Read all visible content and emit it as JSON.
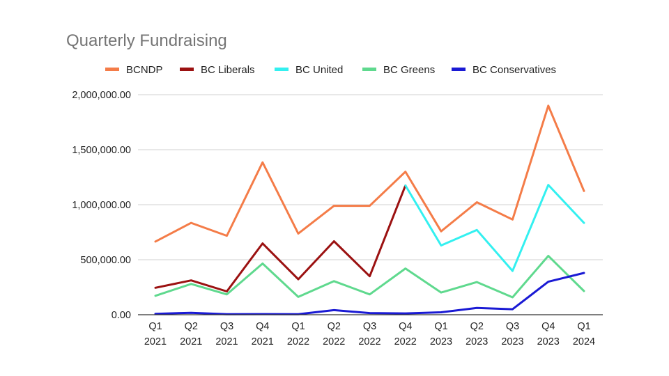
{
  "chart_data": {
    "type": "line",
    "title": "Quarterly Fundraising",
    "xlabel": "",
    "ylabel": "",
    "categories": [
      [
        "Q1",
        "2021"
      ],
      [
        "Q2",
        "2021"
      ],
      [
        "Q3",
        "2021"
      ],
      [
        "Q4",
        "2021"
      ],
      [
        "Q1",
        "2022"
      ],
      [
        "Q2",
        "2022"
      ],
      [
        "Q3",
        "2022"
      ],
      [
        "Q4",
        "2022"
      ],
      [
        "Q1",
        "2023"
      ],
      [
        "Q2",
        "2023"
      ],
      [
        "Q3",
        "2023"
      ],
      [
        "Q4",
        "2023"
      ],
      [
        "Q1",
        "2024"
      ]
    ],
    "ylim": [
      0,
      2000000
    ],
    "yticks": [
      {
        "value": 0,
        "label": "0.00"
      },
      {
        "value": 500000,
        "label": "500,000.00"
      },
      {
        "value": 1000000,
        "label": "1,000,000.00"
      },
      {
        "value": 1500000,
        "label": "1,500,000.00"
      },
      {
        "value": 2000000,
        "label": "2,000,000.00"
      }
    ],
    "grid": true,
    "legend_position": "top",
    "series": [
      {
        "name": "BCNDP",
        "color": "#f47c48",
        "values": [
          665000,
          835000,
          718000,
          1385000,
          738000,
          990000,
          990000,
          1300000,
          758000,
          1022000,
          865000,
          1900000,
          1125000
        ]
      },
      {
        "name": "BC Liberals",
        "color": "#9b1111",
        "values": [
          245000,
          312000,
          212000,
          648000,
          322000,
          668000,
          350000,
          1175000,
          null,
          null,
          null,
          null,
          null
        ]
      },
      {
        "name": "BC United",
        "color": "#33f0f0",
        "values": [
          null,
          null,
          null,
          null,
          null,
          null,
          null,
          1175000,
          630000,
          770000,
          398000,
          1180000,
          835000
        ]
      },
      {
        "name": "BC Greens",
        "color": "#5fd98e",
        "values": [
          172000,
          280000,
          185000,
          465000,
          162000,
          305000,
          185000,
          420000,
          202000,
          297000,
          158000,
          535000,
          215000
        ]
      },
      {
        "name": "BC Conservatives",
        "color": "#1a1ad4",
        "values": [
          8000,
          18000,
          5000,
          6000,
          5000,
          42000,
          15000,
          12000,
          22000,
          62000,
          50000,
          300000,
          380000
        ]
      }
    ]
  }
}
